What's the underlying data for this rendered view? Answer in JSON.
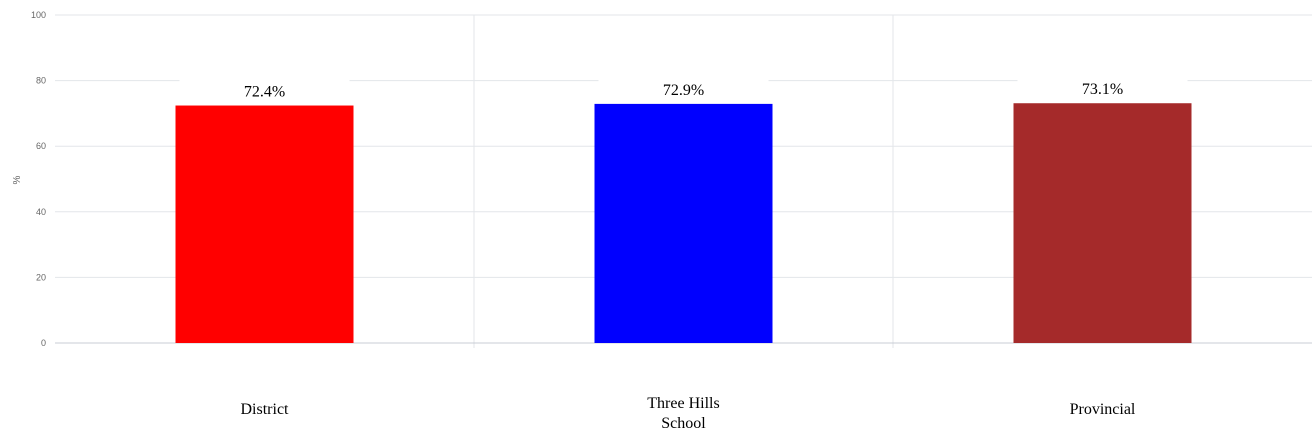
{
  "chart_data": {
    "type": "bar",
    "categories": [
      "District",
      "Three Hills School",
      "Provincial"
    ],
    "category_lines": [
      [
        "District"
      ],
      [
        "Three Hills",
        "School"
      ],
      [
        "Provincial"
      ]
    ],
    "values": [
      72.4,
      72.9,
      73.1
    ],
    "data_labels": [
      "72.4%",
      "72.9%",
      "73.1%"
    ],
    "colors": [
      "#ff0000",
      "#0000ff",
      "#a52a2a"
    ],
    "ylabel": "%",
    "ylim": [
      0,
      100
    ],
    "yticks": [
      0,
      20,
      40,
      60,
      80,
      100
    ],
    "grid": true,
    "legend": "none"
  }
}
